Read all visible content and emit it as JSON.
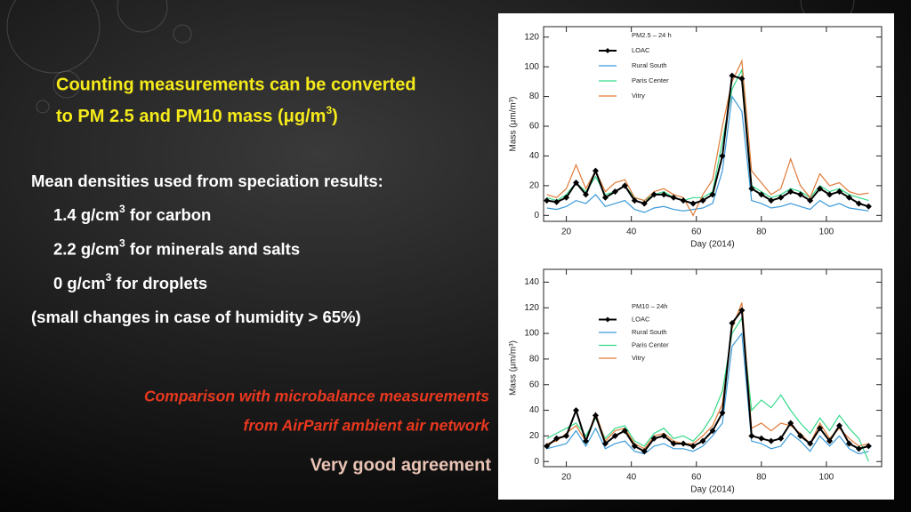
{
  "heading": {
    "line1": "Counting measurements can be converted",
    "line2": [
      "to PM 2.5 and PM10 mass (μg/m",
      "3",
      ")"
    ]
  },
  "densities": {
    "intro": "Mean densities used from speciation results:",
    "items": [
      [
        "1.4 g/cm",
        "3",
        " for carbon"
      ],
      [
        "2.2 g/cm",
        "3",
        " for minerals and salts"
      ],
      [
        "0 g/cm",
        "3",
        " for droplets"
      ]
    ],
    "note": "(small changes in case of humidity > 65%)"
  },
  "comparison": [
    "Comparison with microbalance measurements",
    "from AirParif ambient air network"
  ],
  "conclusion": "Very good agreement",
  "chart_data": [
    {
      "type": "line",
      "legend_title": "PM2.5 – 24 h",
      "xlabel": "Day (2014)",
      "ylabel": "Mass (μm/m³)",
      "xlim": [
        13,
        117
      ],
      "ylim": [
        -4,
        127
      ],
      "xticks": [
        20,
        40,
        60,
        80,
        100
      ],
      "yticks": [
        0,
        20,
        40,
        60,
        80,
        100,
        120
      ],
      "legend": "upper left",
      "x": [
        14,
        17,
        20,
        23,
        26,
        29,
        32,
        35,
        38,
        41,
        44,
        47,
        50,
        53,
        56,
        59,
        62,
        65,
        68,
        71,
        74,
        77,
        80,
        83,
        86,
        89,
        92,
        95,
        98,
        101,
        104,
        107,
        110,
        113
      ],
      "series": [
        {
          "name": "LOAC",
          "color": "#000000",
          "values": [
            10,
            9,
            12,
            22,
            14,
            30,
            12,
            16,
            20,
            10,
            8,
            14,
            14,
            12,
            10,
            8,
            10,
            14,
            40,
            94,
            92,
            18,
            14,
            10,
            12,
            16,
            14,
            10,
            18,
            14,
            16,
            12,
            8,
            6
          ]
        },
        {
          "name": "Rural South",
          "color": "#3a9ad9",
          "values": [
            5,
            4,
            6,
            10,
            8,
            14,
            6,
            8,
            10,
            4,
            2,
            5,
            6,
            4,
            3,
            4,
            5,
            8,
            30,
            80,
            70,
            10,
            8,
            5,
            6,
            8,
            6,
            4,
            10,
            6,
            8,
            5,
            4,
            3
          ]
        },
        {
          "name": "Paris Center",
          "color": "#36d98a",
          "values": [
            12,
            10,
            14,
            22,
            16,
            26,
            14,
            16,
            20,
            12,
            10,
            14,
            16,
            12,
            10,
            12,
            12,
            16,
            50,
            85,
            98,
            20,
            16,
            12,
            14,
            18,
            16,
            12,
            20,
            16,
            18,
            14,
            12,
            10
          ]
        },
        {
          "name": "Vitry",
          "color": "#e07a38",
          "values": [
            14,
            12,
            18,
            34,
            18,
            30,
            16,
            22,
            24,
            12,
            10,
            16,
            18,
            14,
            12,
            0,
            14,
            24,
            60,
            90,
            104,
            30,
            22,
            14,
            18,
            38,
            20,
            12,
            28,
            20,
            22,
            16,
            14,
            15
          ]
        }
      ]
    },
    {
      "type": "line",
      "legend_title": "PM10 – 24h",
      "xlabel": "Day (2014)",
      "ylabel": "Mass (μm/m³)",
      "xlim": [
        13,
        117
      ],
      "ylim": [
        -4,
        150
      ],
      "xticks": [
        20,
        40,
        60,
        80,
        100
      ],
      "yticks": [
        0,
        20,
        40,
        60,
        80,
        100,
        120,
        140
      ],
      "legend": "upper left",
      "x": [
        14,
        17,
        20,
        23,
        26,
        29,
        32,
        35,
        38,
        41,
        44,
        47,
        50,
        53,
        56,
        59,
        62,
        65,
        68,
        71,
        74,
        77,
        80,
        83,
        86,
        89,
        92,
        95,
        98,
        101,
        104,
        107,
        110,
        113
      ],
      "series": [
        {
          "name": "LOAC",
          "color": "#000000",
          "values": [
            12,
            18,
            20,
            40,
            16,
            36,
            14,
            20,
            24,
            12,
            8,
            18,
            20,
            14,
            14,
            12,
            16,
            24,
            38,
            108,
            118,
            20,
            18,
            16,
            18,
            30,
            20,
            14,
            26,
            16,
            28,
            14,
            10,
            12
          ]
        },
        {
          "name": "Rural South",
          "color": "#3a9ad9",
          "values": [
            10,
            12,
            14,
            24,
            12,
            26,
            10,
            14,
            16,
            8,
            6,
            12,
            14,
            10,
            10,
            8,
            12,
            20,
            30,
            90,
            100,
            16,
            14,
            10,
            12,
            22,
            16,
            8,
            20,
            12,
            20,
            10,
            6,
            8
          ]
        },
        {
          "name": "Paris Center",
          "color": "#36d98a",
          "values": [
            18,
            22,
            26,
            30,
            20,
            34,
            18,
            26,
            28,
            16,
            12,
            22,
            26,
            18,
            20,
            16,
            24,
            36,
            55,
            100,
            112,
            40,
            48,
            42,
            52,
            40,
            30,
            22,
            34,
            24,
            36,
            26,
            18,
            0
          ]
        },
        {
          "name": "Vitry",
          "color": "#e07a38",
          "values": [
            14,
            16,
            22,
            28,
            16,
            38,
            16,
            24,
            26,
            14,
            10,
            20,
            22,
            16,
            14,
            14,
            20,
            28,
            45,
            104,
            124,
            26,
            30,
            24,
            30,
            28,
            22,
            14,
            30,
            18,
            26,
            18,
            12,
            14
          ]
        }
      ]
    }
  ]
}
